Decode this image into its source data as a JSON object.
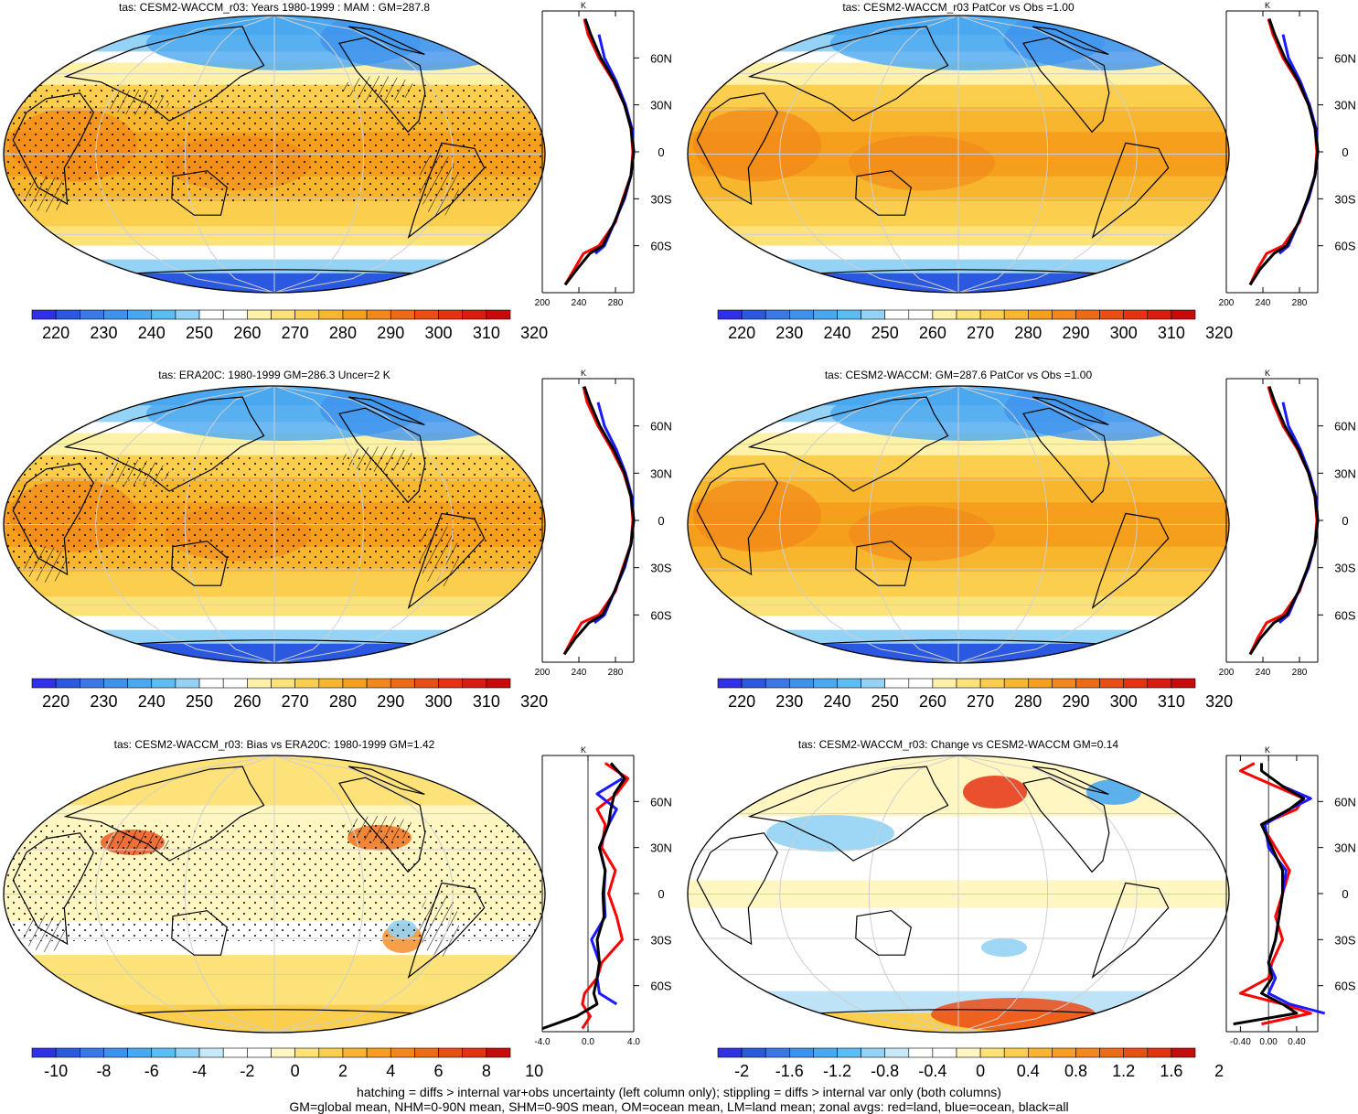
{
  "panels": [
    {
      "title": "tas: CESM2-WACCM_r03: Years 1980-1999 : MAM : GM=287.8",
      "colorbar": {
        "labels": [
          "220",
          "230",
          "240",
          "250",
          "260",
          "270",
          "280",
          "290",
          "300",
          "310",
          "320"
        ],
        "colors": [
          "#3030e8",
          "#2a58e0",
          "#3a78e8",
          "#3f92ec",
          "#4aa8f0",
          "#5bbdf2",
          "#94d3f5",
          "#ffffff",
          "#ffffff",
          "#fff2a8",
          "#fde27a",
          "#fbcf4d",
          "#f8b62e",
          "#f59f1c",
          "#f2871a",
          "#ee6a17",
          "#ea4e15",
          "#e63213",
          "#d91c10",
          "#c80a0a"
        ]
      },
      "profile": {
        "xticks": [
          "200",
          "240",
          "280"
        ],
        "unit": "K"
      }
    },
    {
      "title": "tas: CESM2-WACCM_r03 PatCor vs Obs =1.00",
      "colorbar": {
        "labels": [
          "220",
          "230",
          "240",
          "250",
          "260",
          "270",
          "280",
          "290",
          "300",
          "310",
          "320"
        ],
        "colors": [
          "#3030e8",
          "#2a58e0",
          "#3a78e8",
          "#3f92ec",
          "#4aa8f0",
          "#5bbdf2",
          "#94d3f5",
          "#ffffff",
          "#ffffff",
          "#fff2a8",
          "#fde27a",
          "#fbcf4d",
          "#f8b62e",
          "#f59f1c",
          "#f2871a",
          "#ee6a17",
          "#ea4e15",
          "#e63213",
          "#d91c10",
          "#c80a0a"
        ]
      },
      "profile": {
        "xticks": [
          "200",
          "240",
          "280"
        ],
        "unit": "K"
      }
    },
    {
      "title": "tas: ERA20C: 1980-1999 GM=286.3 Uncer=2 K",
      "colorbar": {
        "labels": [
          "220",
          "230",
          "240",
          "250",
          "260",
          "270",
          "280",
          "290",
          "300",
          "310",
          "320"
        ],
        "colors": [
          "#3030e8",
          "#2a58e0",
          "#3a78e8",
          "#3f92ec",
          "#4aa8f0",
          "#5bbdf2",
          "#94d3f5",
          "#ffffff",
          "#ffffff",
          "#fff2a8",
          "#fde27a",
          "#fbcf4d",
          "#f8b62e",
          "#f59f1c",
          "#f2871a",
          "#ee6a17",
          "#ea4e15",
          "#e63213",
          "#d91c10",
          "#c80a0a"
        ]
      },
      "profile": {
        "xticks": [
          "200",
          "240",
          "280"
        ],
        "unit": "K"
      }
    },
    {
      "title": "tas: CESM2-WACCM: GM=287.6 PatCor vs Obs =1.00",
      "colorbar": {
        "labels": [
          "220",
          "230",
          "240",
          "250",
          "260",
          "270",
          "280",
          "290",
          "300",
          "310",
          "320"
        ],
        "colors": [
          "#3030e8",
          "#2a58e0",
          "#3a78e8",
          "#3f92ec",
          "#4aa8f0",
          "#5bbdf2",
          "#94d3f5",
          "#ffffff",
          "#ffffff",
          "#fff2a8",
          "#fde27a",
          "#fbcf4d",
          "#f8b62e",
          "#f59f1c",
          "#f2871a",
          "#ee6a17",
          "#ea4e15",
          "#e63213",
          "#d91c10",
          "#c80a0a"
        ]
      },
      "profile": {
        "xticks": [
          "200",
          "240",
          "280"
        ],
        "unit": "K"
      }
    },
    {
      "title": "tas: CESM2-WACCM_r03: Bias vs ERA20C: 1980-1999 GM=1.42",
      "colorbar": {
        "labels": [
          "-10",
          "-8",
          "-6",
          "-4",
          "-2",
          "0",
          "2",
          "4",
          "6",
          "8",
          "10"
        ],
        "colors": [
          "#3030e8",
          "#2a58e0",
          "#3a78e8",
          "#3f92ec",
          "#4aa8f0",
          "#5bbdf2",
          "#94d3f5",
          "#c7e8f8",
          "#ffffff",
          "#ffffff",
          "#fff6c2",
          "#fde27a",
          "#fbcf4d",
          "#f8b62e",
          "#f59f1c",
          "#f2871a",
          "#ee6a17",
          "#ea4e15",
          "#e63213",
          "#c80a0a"
        ]
      },
      "profile": {
        "xticks": [
          "-4.0",
          "0.0",
          "4.0"
        ],
        "unit": "K"
      }
    },
    {
      "title": "tas: CESM2-WACCM_r03: Change vs CESM2-WACCM GM=0.14",
      "colorbar": {
        "labels": [
          "-2",
          "-1.6",
          "-1.2",
          "-0.8",
          "-0.4",
          "0",
          "0.4",
          "0.8",
          "1.2",
          "1.6",
          "2"
        ],
        "colors": [
          "#3030e8",
          "#2a58e0",
          "#3a78e8",
          "#3f92ec",
          "#4aa8f0",
          "#5bbdf2",
          "#94d3f5",
          "#c7e8f8",
          "#ffffff",
          "#ffffff",
          "#fff6c2",
          "#fde27a",
          "#fbcf4d",
          "#f8b62e",
          "#f59f1c",
          "#f2871a",
          "#ee6a17",
          "#ea4e15",
          "#e63213",
          "#c80a0a"
        ]
      },
      "profile": {
        "xticks": [
          "-0.40",
          "0.00",
          "0.40"
        ],
        "unit": "K"
      }
    }
  ],
  "lat_labels": [
    "60N",
    "30N",
    "0",
    "30S",
    "60S"
  ],
  "footer": {
    "line1": "hatching = diffs > internal var+obs uncertainty (left column only); stippling = diffs > internal var only (both columns)",
    "line2": "GM=global mean, NHM=0-90N mean, SHM=0-90S mean, OM=ocean mean, LM=land mean; zonal avgs: red=land, blue=ocean, black=all"
  },
  "chart_data": [
    {
      "type": "heatmap",
      "title": "tas: CESM2-WACCM_r03: Years 1980-1999 : MAM : GM=287.8",
      "colorbar_ticks": [
        220,
        230,
        240,
        250,
        260,
        270,
        280,
        290,
        300,
        310,
        320
      ],
      "zonal_profile": {
        "xlim": [
          200,
          300
        ],
        "lat": [
          -85,
          -75,
          -65,
          -60,
          -45,
          -30,
          -15,
          0,
          15,
          30,
          45,
          60,
          75,
          85
        ],
        "series": [
          {
            "name": "land",
            "values": [
              225,
              235,
              245,
              262,
              280,
              288,
              297,
              299,
              297,
              290,
              278,
              262,
              250,
              246
            ]
          },
          {
            "name": "ocean",
            "values": [
              null,
              null,
              258,
              268,
              279,
              290,
              297,
              300,
              298,
              291,
              281,
              268,
              262,
              null
            ]
          },
          {
            "name": "all",
            "values": [
              225,
              238,
              252,
              266,
              279,
              289,
              297,
              300,
              297,
              290,
              279,
              264,
              253,
              247
            ]
          }
        ]
      }
    },
    {
      "type": "heatmap",
      "title": "tas: CESM2-WACCM_r03 PatCor vs Obs =1.00",
      "colorbar_ticks": [
        220,
        230,
        240,
        250,
        260,
        270,
        280,
        290,
        300,
        310,
        320
      ],
      "zonal_profile": {
        "xlim": [
          200,
          300
        ],
        "lat": [
          -85,
          -75,
          -65,
          -60,
          -45,
          -30,
          -15,
          0,
          15,
          30,
          45,
          60,
          75,
          85
        ],
        "series": [
          {
            "name": "land",
            "values": [
              226,
              234,
              244,
              262,
              280,
              289,
              297,
              299,
              297,
              290,
              278,
              262,
              251,
              246
            ]
          },
          {
            "name": "ocean",
            "values": [
              null,
              null,
              258,
              268,
              279,
              290,
              297,
              300,
              298,
              291,
              281,
              268,
              262,
              null
            ]
          },
          {
            "name": "all",
            "values": [
              226,
              237,
              252,
              266,
              279,
              289,
              297,
              300,
              297,
              290,
              279,
              264,
              253,
              247
            ]
          }
        ]
      }
    },
    {
      "type": "heatmap",
      "title": "tas: ERA20C: 1980-1999 GM=286.3 Uncer=2 K",
      "colorbar_ticks": [
        220,
        230,
        240,
        250,
        260,
        270,
        280,
        290,
        300,
        310,
        320
      ],
      "zonal_profile": {
        "xlim": [
          200,
          300
        ],
        "lat": [
          -85,
          -75,
          -65,
          -60,
          -45,
          -30,
          -15,
          0,
          15,
          30,
          45,
          60,
          75,
          85
        ],
        "series": [
          {
            "name": "land",
            "values": [
              224,
              233,
              243,
              262,
              280,
              288,
              297,
              299,
              297,
              289,
              276,
              261,
              249,
              245
            ]
          },
          {
            "name": "ocean",
            "values": [
              null,
              null,
              257,
              268,
              279,
              290,
              297,
              300,
              298,
              291,
              281,
              268,
              261,
              null
            ]
          },
          {
            "name": "all",
            "values": [
              224,
              236,
              251,
              266,
              279,
              289,
              297,
              300,
              297,
              290,
              278,
              263,
              252,
              246
            ]
          }
        ]
      }
    },
    {
      "type": "heatmap",
      "title": "tas: CESM2-WACCM: GM=287.6 PatCor vs Obs =1.00",
      "colorbar_ticks": [
        220,
        230,
        240,
        250,
        260,
        270,
        280,
        290,
        300,
        310,
        320
      ],
      "zonal_profile": {
        "xlim": [
          200,
          300
        ],
        "lat": [
          -85,
          -75,
          -65,
          -60,
          -45,
          -30,
          -15,
          0,
          15,
          30,
          45,
          60,
          75,
          85
        ],
        "series": [
          {
            "name": "land",
            "values": [
              226,
              234,
              244,
              262,
              280,
              289,
              297,
              299,
              297,
              290,
              278,
              262,
              251,
              246
            ]
          },
          {
            "name": "ocean",
            "values": [
              null,
              null,
              258,
              268,
              279,
              290,
              297,
              300,
              298,
              291,
              281,
              268,
              262,
              null
            ]
          },
          {
            "name": "all",
            "values": [
              226,
              237,
              252,
              266,
              279,
              289,
              297,
              300,
              297,
              290,
              279,
              264,
              253,
              247
            ]
          }
        ]
      }
    },
    {
      "type": "heatmap",
      "title": "tas: CESM2-WACCM_r03: Bias vs ERA20C: 1980-1999 GM=1.42",
      "colorbar_ticks": [
        -10,
        -8,
        -6,
        -4,
        -2,
        0,
        2,
        4,
        6,
        8,
        10
      ],
      "zonal_profile": {
        "xlim": [
          -4,
          4
        ],
        "lat": [
          -88,
          -80,
          -72,
          -65,
          -55,
          -45,
          -30,
          -15,
          0,
          15,
          30,
          45,
          55,
          65,
          75,
          85
        ],
        "series": [
          {
            "name": "land",
            "values": [
              -0.5,
              0.2,
              -0.5,
              -0.3,
              0.8,
              1.2,
              3.0,
              2.5,
              1.8,
              2.4,
              1.2,
              1.5,
              0.8,
              2.5,
              3.5,
              1.5
            ]
          },
          {
            "name": "ocean",
            "values": [
              null,
              null,
              2.5,
              1.0,
              0.8,
              1.0,
              0.3,
              1.5,
              1.4,
              1.5,
              1.0,
              1.8,
              2.5,
              0.8,
              3.0,
              null
            ]
          },
          {
            "name": "all",
            "values": [
              -4.0,
              -1.0,
              0.8,
              0.5,
              0.8,
              1.0,
              0.8,
              1.4,
              1.3,
              1.5,
              1.0,
              1.8,
              2.0,
              2.3,
              3.2,
              2.0
            ]
          }
        ]
      }
    },
    {
      "type": "heatmap",
      "title": "tas: CESM2-WACCM_r03: Change vs CESM2-WACCM GM=0.14",
      "colorbar_ticks": [
        -2,
        -1.6,
        -1.2,
        -0.8,
        -0.4,
        0,
        0.4,
        0.8,
        1.2,
        1.6,
        2
      ],
      "zonal_profile": {
        "xlim": [
          -0.6,
          0.7
        ],
        "lat": [
          -85,
          -78,
          -72,
          -65,
          -55,
          -45,
          -30,
          -15,
          0,
          15,
          30,
          45,
          55,
          62,
          70,
          80,
          85
        ],
        "series": [
          {
            "name": "land",
            "values": [
              -0.1,
              0.6,
              0.2,
              -0.4,
              0.0,
              0.05,
              0.2,
              0.1,
              0.2,
              0.3,
              0.1,
              -0.1,
              0.4,
              0.5,
              0.1,
              -0.4,
              -0.2
            ]
          },
          {
            "name": "ocean",
            "values": [
              null,
              0.8,
              0.3,
              0.0,
              0.1,
              0.0,
              0.1,
              0.15,
              0.2,
              0.25,
              0.0,
              -0.05,
              0.3,
              0.6,
              0.2,
              null,
              null
            ]
          },
          {
            "name": "all",
            "values": [
              -0.5,
              0.4,
              0.2,
              -0.1,
              0.05,
              0.0,
              0.1,
              0.15,
              0.2,
              0.2,
              0.05,
              -0.1,
              0.3,
              0.5,
              0.2,
              -0.1,
              -0.1
            ]
          }
        ]
      }
    }
  ]
}
